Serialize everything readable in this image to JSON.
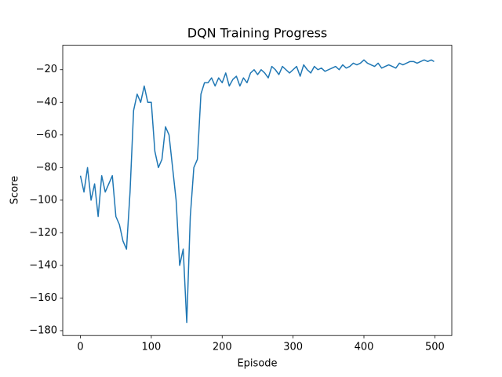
{
  "chart_data": {
    "type": "line",
    "title": "DQN Training Progress",
    "x_label": "Episode",
    "y_label": "Score",
    "x": [
      0,
      5,
      10,
      15,
      20,
      25,
      30,
      35,
      40,
      45,
      50,
      55,
      60,
      65,
      70,
      75,
      80,
      85,
      90,
      95,
      100,
      105,
      110,
      115,
      120,
      125,
      130,
      135,
      140,
      145,
      150,
      155,
      160,
      165,
      170,
      175,
      180,
      185,
      190,
      195,
      200,
      205,
      210,
      215,
      220,
      225,
      230,
      235,
      240,
      245,
      250,
      255,
      260,
      265,
      270,
      275,
      280,
      285,
      290,
      295,
      300,
      305,
      310,
      315,
      320,
      325,
      330,
      335,
      340,
      345,
      350,
      355,
      360,
      365,
      370,
      375,
      380,
      385,
      390,
      395,
      400,
      405,
      410,
      415,
      420,
      425,
      430,
      435,
      440,
      445,
      450,
      455,
      460,
      465,
      470,
      475,
      480,
      485,
      490,
      495,
      499
    ],
    "series": [
      {
        "name": "Score",
        "color": "#1f77b4",
        "values": [
          -85,
          -95,
          -80,
          -100,
          -90,
          -110,
          -85,
          -95,
          -90,
          -85,
          -110,
          -115,
          -125,
          -130,
          -95,
          -45,
          -35,
          -40,
          -30,
          -40,
          -40,
          -70,
          -80,
          -75,
          -55,
          -60,
          -80,
          -100,
          -140,
          -130,
          -175,
          -110,
          -80,
          -75,
          -35,
          -28,
          -28,
          -25,
          -30,
          -25,
          -28,
          -22,
          -30,
          -26,
          -24,
          -30,
          -25,
          -28,
          -22,
          -20,
          -23,
          -20,
          -22,
          -25,
          -18,
          -20,
          -23,
          -18,
          -20,
          -22,
          -20,
          -18,
          -24,
          -17,
          -20,
          -22,
          -18,
          -20,
          -19,
          -21,
          -20,
          -19,
          -18,
          -20,
          -17,
          -19,
          -18,
          -16,
          -17,
          -16,
          -14,
          -16,
          -17,
          -18,
          -16,
          -19,
          -18,
          -17,
          -18,
          -19,
          -16,
          -17,
          -16,
          -15,
          -15,
          -16,
          -15,
          -14,
          -15,
          -14,
          -15
        ]
      }
    ],
    "xlim": [
      -24.95,
      523.95
    ],
    "ylim": [
      -183,
      -5
    ],
    "xticks": [
      0,
      100,
      200,
      300,
      400,
      500
    ],
    "yticks": [
      {
        "value": -180,
        "label": "−180"
      },
      {
        "value": -160,
        "label": "−160"
      },
      {
        "value": -140,
        "label": "−140"
      },
      {
        "value": -120,
        "label": "−120"
      },
      {
        "value": -100,
        "label": "−100"
      },
      {
        "value": -80,
        "label": "−80"
      },
      {
        "value": -60,
        "label": "−60"
      },
      {
        "value": -40,
        "label": "−40"
      },
      {
        "value": -20,
        "label": "−20"
      }
    ]
  }
}
